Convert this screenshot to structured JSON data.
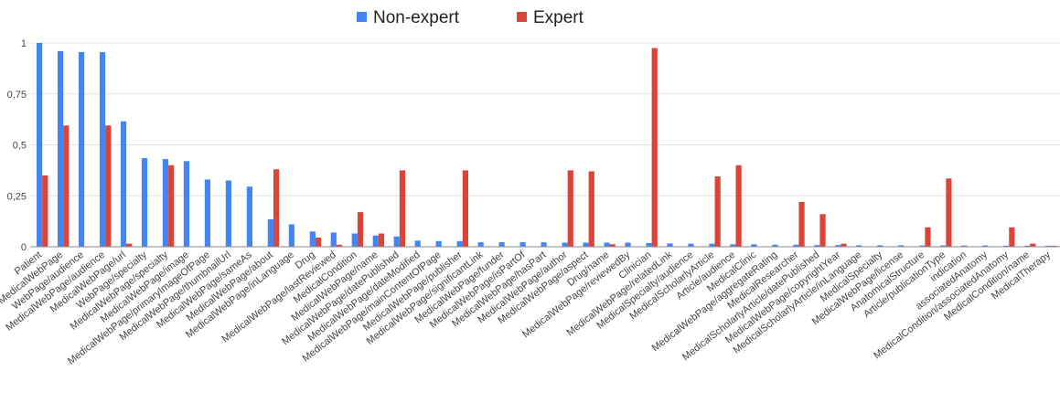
{
  "chart_data": {
    "type": "bar",
    "legend_position": "top",
    "grid": true,
    "ylim": [
      0,
      1
    ],
    "yticks": [
      "0",
      "0,25",
      "0,5",
      "0,75",
      "1"
    ],
    "ytick_values": [
      0,
      0.25,
      0.5,
      0.75,
      1
    ],
    "categories": [
      "Patient",
      "MedicalWebPage",
      "WebPage/audience",
      "MedicalWebPage/audience",
      "MedicalWebPage/url",
      "WebPage/specialty",
      "MedicalWebPage/specialty",
      "MedicalWebPage/image",
      "MedicalWebPage/primaryImageOfPage",
      "MedicalWebPage/thumbnailUrl",
      "MedicalWebPage/sameAs",
      "MedicalWebPage/about",
      "MedicalWebPage/inLanguage",
      "Drug",
      "MedicalWebPage/lastReviewed",
      "MedicalCondition",
      "MedicalWebPage/name",
      "MedicalWebPage/datePublished",
      "MedicalWebPage/dateModified",
      "MedicalWebPage/mainContentOfPage",
      "MedicalWebPage/publisher",
      "MedicalWebPage/significantLink",
      "MedicalWebPage/funder",
      "MedicalWebPage/isPartOf",
      "MedicalWebPage/hasPart",
      "MedicalWebPage/author",
      "MedicalWebPage/aspect",
      "Drug/name",
      "MedicalWebPage/reviewedBy",
      "Clinician",
      "MedicalWebPage/relatedLink",
      "MedicalSpecialty/audience",
      "MedicalScholarlyArticle",
      "Article/audience",
      "MedicalClinic",
      "MedicalWebPage/aggregateRating",
      "MedicalResearcher",
      "MedicalScholarlyArticle/datePublished",
      "MedicalWebPage/copyrightYear",
      "MedicalScholarlyArticle/inLanguage",
      "MedicalSpecialty",
      "MedicalWebPage/license",
      "AnatomicalStructure",
      "Article/publicationType",
      "indication",
      "associatedAnatomy",
      "MedicalCondition/associatedAnatomy",
      "MedicalCondition/name",
      "MedicalTherapy"
    ],
    "series": [
      {
        "name": "Non-expert",
        "color": "#4285f4",
        "values": [
          1.0,
          0.96,
          0.955,
          0.955,
          0.615,
          0.435,
          0.43,
          0.42,
          0.33,
          0.325,
          0.295,
          0.135,
          0.11,
          0.075,
          0.07,
          0.065,
          0.055,
          0.05,
          0.03,
          0.028,
          0.028,
          0.022,
          0.022,
          0.022,
          0.022,
          0.02,
          0.02,
          0.02,
          0.02,
          0.018,
          0.016,
          0.015,
          0.015,
          0.012,
          0.012,
          0.01,
          0.01,
          0.008,
          0.008,
          0.007,
          0.007,
          0.007,
          0.006,
          0.006,
          0.006,
          0.006,
          0.005,
          0.005,
          0.005
        ]
      },
      {
        "name": "Expert",
        "color": "#db4437",
        "values": [
          0.35,
          0.595,
          0.0,
          0.595,
          0.015,
          0.0,
          0.4,
          0.0,
          0.0,
          0.0,
          0.0,
          0.38,
          0.0,
          0.045,
          0.01,
          0.17,
          0.065,
          0.375,
          0.0,
          0.0,
          0.375,
          0.0,
          0.0,
          0.0,
          0.0,
          0.375,
          0.37,
          0.012,
          0.0,
          0.975,
          0.0,
          0.0,
          0.345,
          0.4,
          0.0,
          0.0,
          0.22,
          0.16,
          0.015,
          0.0,
          0.0,
          0.0,
          0.095,
          0.335,
          0.0,
          0.0,
          0.095,
          0.015,
          0.005
        ]
      }
    ]
  }
}
